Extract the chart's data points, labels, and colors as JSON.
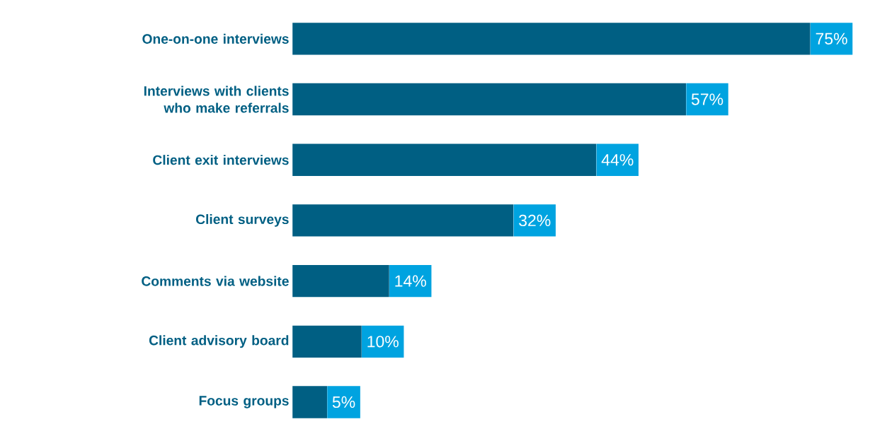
{
  "chart_data": {
    "type": "bar",
    "orientation": "horizontal",
    "categories": [
      "One-on-one interviews",
      "Interviews with clients who make referrals",
      "Client exit interviews",
      "Client surveys",
      "Comments via website",
      "Client advisory board",
      "Focus groups"
    ],
    "values": [
      75,
      57,
      44,
      32,
      14,
      10,
      5
    ],
    "value_labels": [
      "75%",
      "57%",
      "44%",
      "32%",
      "14%",
      "10%",
      "5%"
    ],
    "color": "#005f83"
  }
}
